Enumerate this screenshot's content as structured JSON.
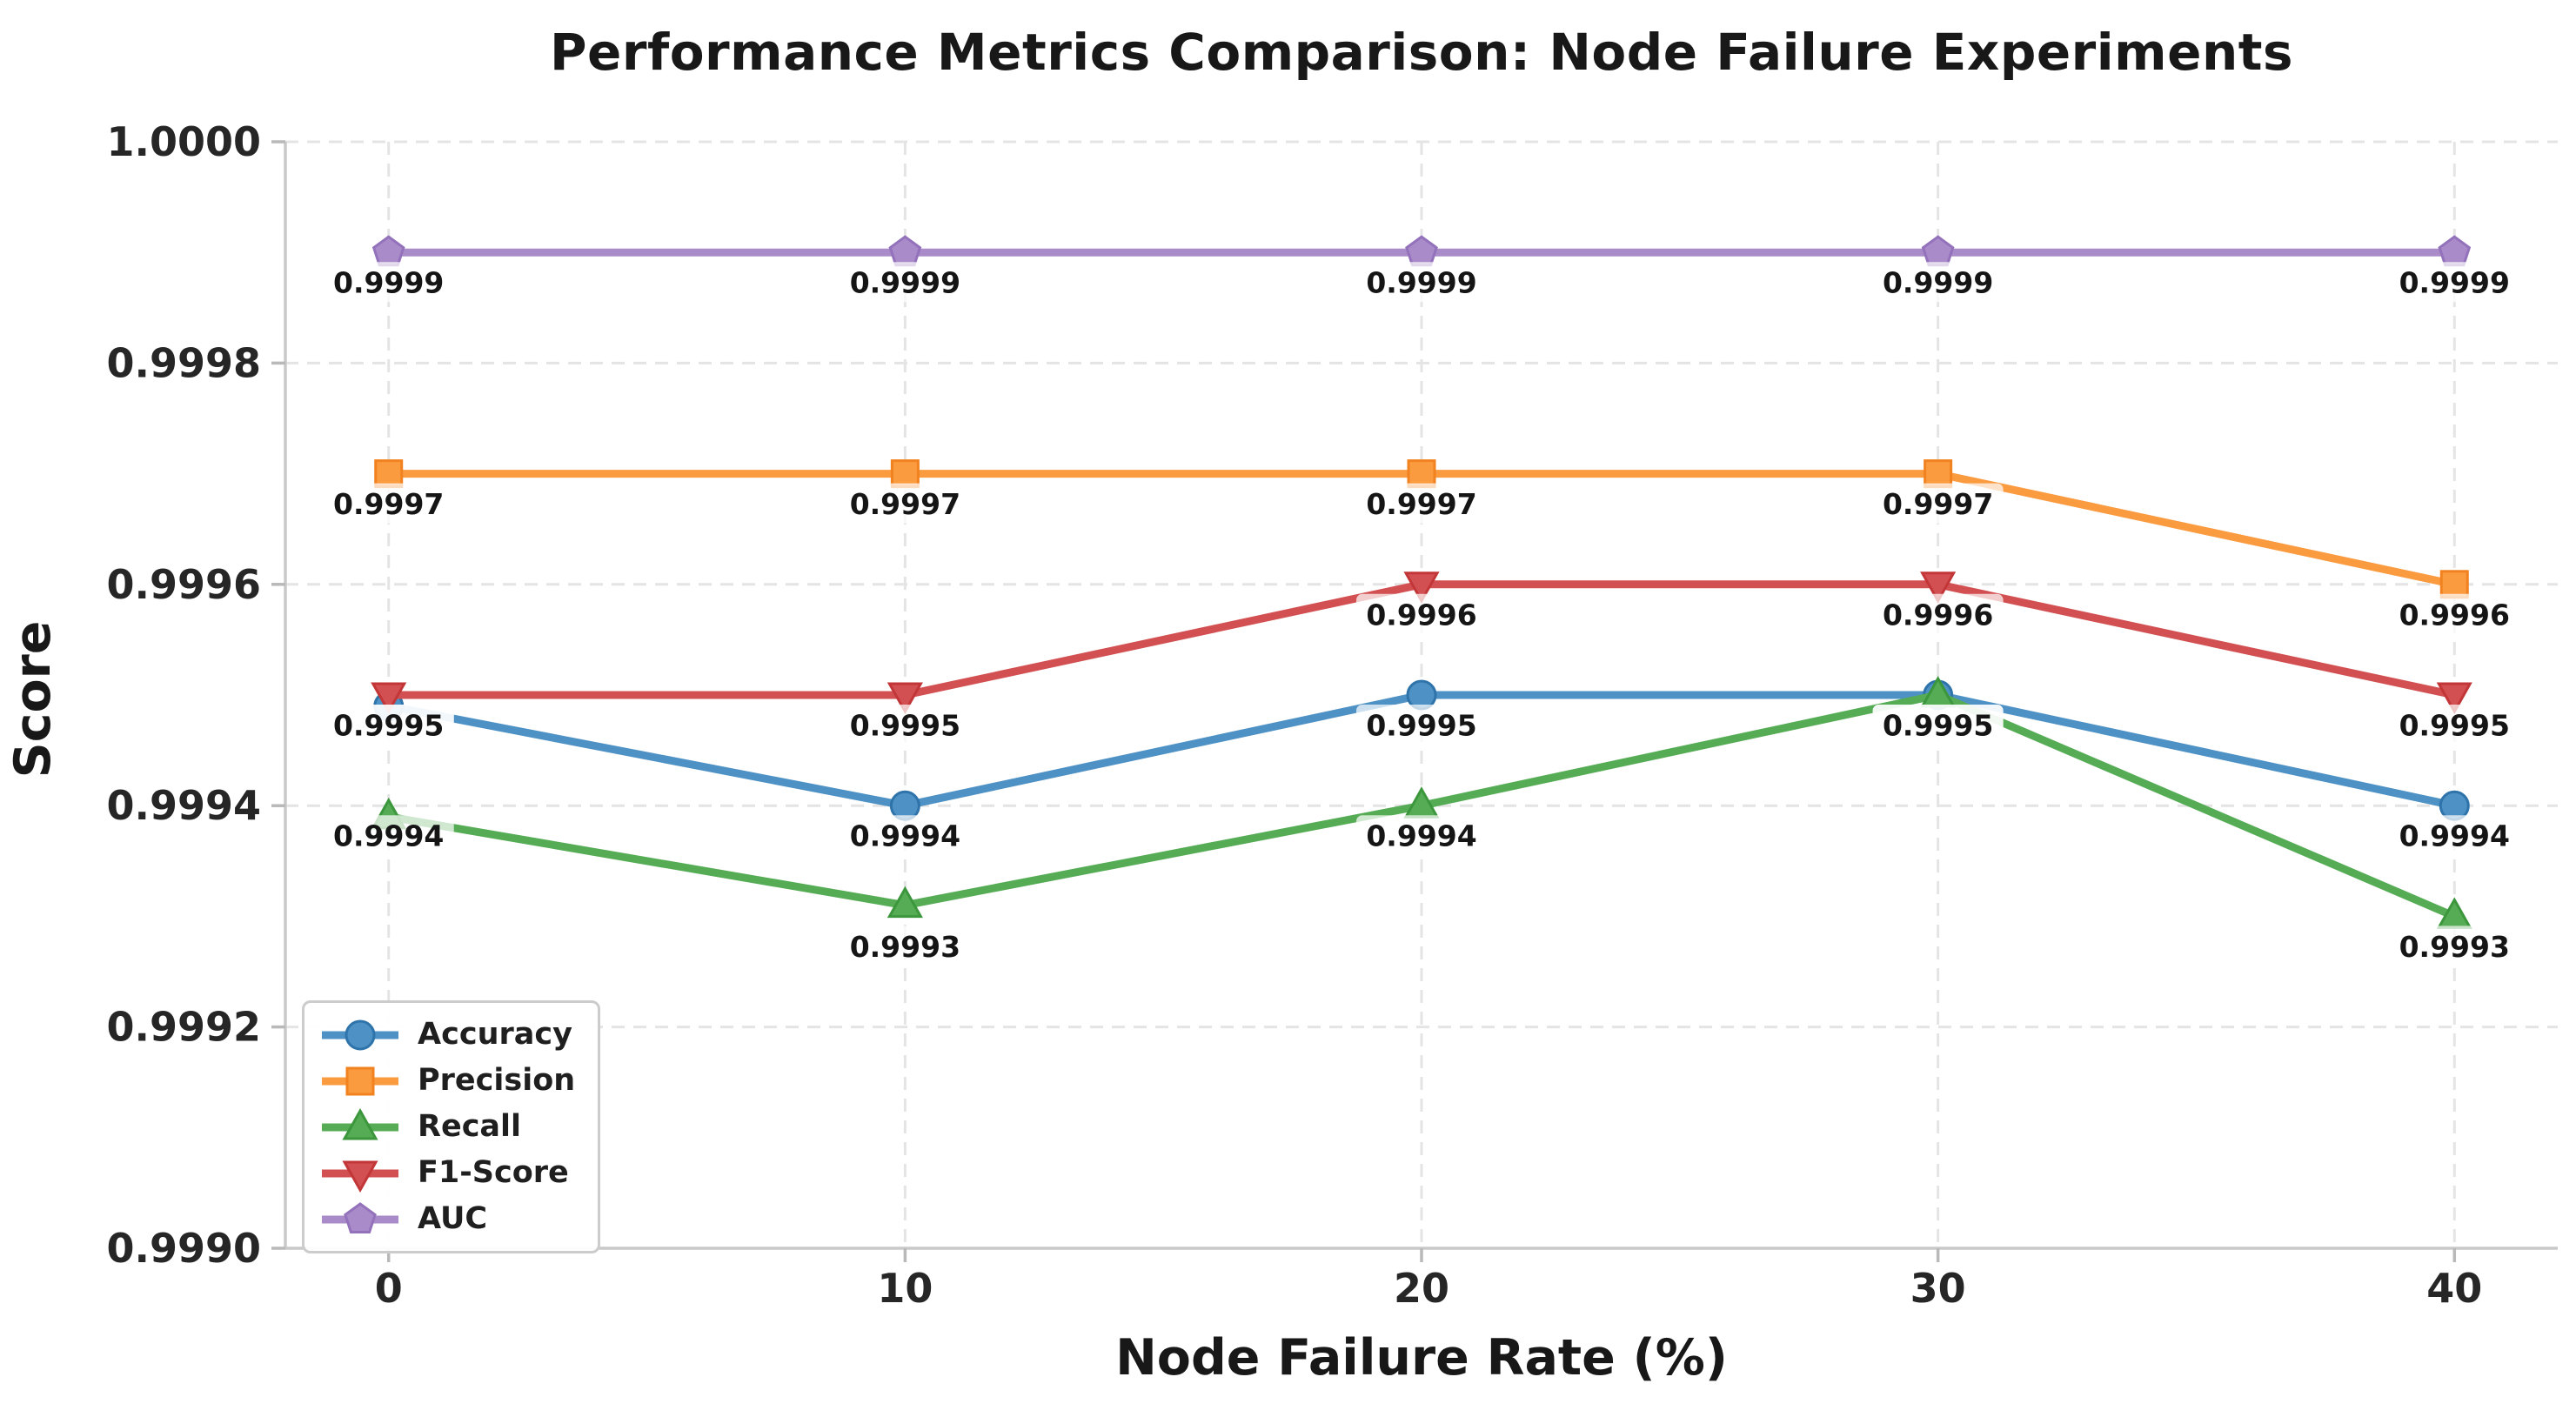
{
  "title": "Performance Metrics Comparison: Node Failure Experiments",
  "chart_data": {
    "type": "line",
    "title": "Performance Metrics Comparison: Node Failure Experiments",
    "xlabel": "Node Failure Rate (%)",
    "ylabel": "Score",
    "x": [
      0,
      10,
      20,
      30,
      40
    ],
    "x_tick_labels": [
      "0",
      "10",
      "20",
      "30",
      "40"
    ],
    "xlim": [
      -2,
      42
    ],
    "ylim": [
      0.999,
      1.0
    ],
    "y_ticks": [
      1.0,
      0.9998,
      0.9996,
      0.9994,
      0.9992,
      0.999
    ],
    "y_tick_labels": [
      "1.0000",
      "0.9998",
      "0.9996",
      "0.9994",
      "0.9992",
      "0.9990"
    ],
    "grid": {
      "visible": true,
      "style": "dashed",
      "color": "#e4e4e4"
    },
    "legend": {
      "position": "lower left",
      "entries": [
        "Accuracy",
        "Precision",
        "Recall",
        "F1-Score",
        "AUC"
      ]
    },
    "annotation_box_color": "#ffffff",
    "series": [
      {
        "name": "Accuracy",
        "marker": "circle",
        "color": "#4e91c4",
        "edge_color": "#2e74ab",
        "values": [
          0.99949,
          0.9994,
          0.9995,
          0.9995,
          0.9994
        ],
        "point_labels": [
          "0.9995",
          "0.9994",
          "0.9995",
          "0.9995",
          "0.9994"
        ]
      },
      {
        "name": "Precision",
        "marker": "square",
        "color": "#fb9b40",
        "edge_color": "#f1821f",
        "values": [
          0.9997,
          0.9997,
          0.9997,
          0.9997,
          0.9996
        ],
        "point_labels": [
          "0.9997",
          "0.9997",
          "0.9997",
          "0.9997",
          "0.9996"
        ]
      },
      {
        "name": "Recall",
        "marker": "triangle-up",
        "color": "#55ac55",
        "edge_color": "#3c963c",
        "values": [
          0.99939,
          0.99931,
          0.9994,
          0.9995,
          0.9993
        ],
        "point_labels": [
          "0.9994",
          "0.9993",
          "0.9994",
          "0.9995",
          "0.9993"
        ]
      },
      {
        "name": "F1-Score",
        "marker": "triangle-down",
        "color": "#d25052",
        "edge_color": "#c33638",
        "values": [
          0.9995,
          0.9995,
          0.9996,
          0.9996,
          0.9995
        ],
        "point_labels": [
          "0.9995",
          "0.9995",
          "0.9996",
          "0.9996",
          "0.9995"
        ]
      },
      {
        "name": "AUC",
        "marker": "pentagon",
        "color": "#a98bc9",
        "edge_color": "#9372bb",
        "values": [
          0.9999,
          0.9999,
          0.9999,
          0.9999,
          0.9999
        ],
        "point_labels": [
          "0.9999",
          "0.9999",
          "0.9999",
          "0.9999",
          "0.9999"
        ]
      }
    ]
  }
}
